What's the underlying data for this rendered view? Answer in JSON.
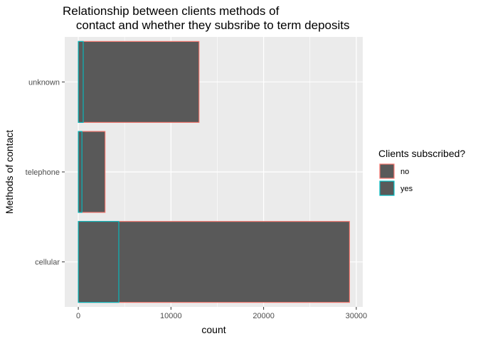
{
  "chart_data": {
    "type": "bar",
    "orientation": "horizontal",
    "stacked": true,
    "title": "Relationship between clients methods of\n    contact and whether they subsribe to term deposits",
    "xlabel": "count",
    "ylabel": "Methods of contact",
    "xlim": [
      -1465,
      30700
    ],
    "x_ticks": [
      0,
      10000,
      20000,
      30000
    ],
    "x_tick_labels": [
      "0",
      "10000",
      "20000",
      "30000"
    ],
    "categories": [
      "cellular",
      "telephone",
      "unknown"
    ],
    "series": [
      {
        "name": "no",
        "values": [
          24900,
          2500,
          12500
        ],
        "outline": "#F8766D"
      },
      {
        "name": "yes",
        "values": [
          4370,
          390,
          530
        ],
        "outline": "#00BFC4"
      }
    ],
    "bar_fill": "#595959",
    "panel_background": "#EBEBEB",
    "grid": true,
    "legend": {
      "title": "Clients subscribed?",
      "position": "right",
      "items": [
        "no",
        "yes"
      ]
    }
  }
}
